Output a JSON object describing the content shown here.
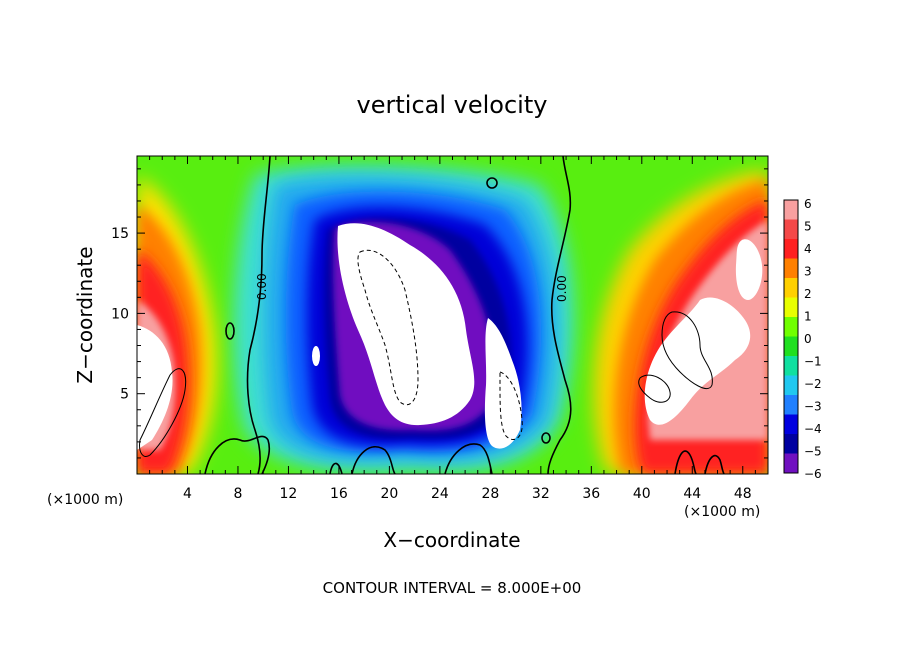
{
  "chart_data": {
    "type": "heatmap",
    "title": "vertical velocity",
    "xlabel": "X−coordinate",
    "ylabel": "Z−coordinate",
    "x_unit_label_left": "(×1000 m)",
    "x_unit_label_right": "(×1000 m)",
    "footer": "CONTOUR INTERVAL = 8.000E+00",
    "xlim": [
      0,
      50
    ],
    "ylim": [
      0,
      19.8
    ],
    "x_ticks": [
      4,
      8,
      12,
      16,
      20,
      24,
      28,
      32,
      36,
      40,
      44,
      48
    ],
    "y_ticks": [
      5,
      10,
      15
    ],
    "zero_contour_label": "0.00",
    "colorbar": {
      "ticks": [
        6,
        5,
        4,
        3,
        2,
        1,
        0,
        -1,
        -2,
        -3,
        -4,
        -5,
        -6
      ],
      "tick_labels": [
        "6",
        "5",
        "4",
        "3",
        "2",
        "1",
        "0",
        "−1",
        "−2",
        "−3",
        "−4",
        "−5",
        "−6"
      ],
      "colors": [
        "#f8a0a0",
        "#f44848",
        "#ff2020",
        "#ff8000",
        "#ffd000",
        "#e8ff00",
        "#70ff00",
        "#20e020",
        "#10e0a0",
        "#20c8f0",
        "#2080ff",
        "#0000e0",
        "#0000a0",
        "#7010c0"
      ]
    },
    "features": [
      {
        "type": "updraft",
        "x": [
          0,
          5
        ],
        "z": [
          0,
          19.8
        ],
        "peak": "above 6"
      },
      {
        "type": "downdraft",
        "x": [
          15,
          32
        ],
        "z": [
          3,
          16
        ],
        "peak": "below -6"
      },
      {
        "type": "updraft",
        "x": [
          36,
          50
        ],
        "z": [
          0,
          19.8
        ],
        "peak": "above 6"
      }
    ]
  }
}
